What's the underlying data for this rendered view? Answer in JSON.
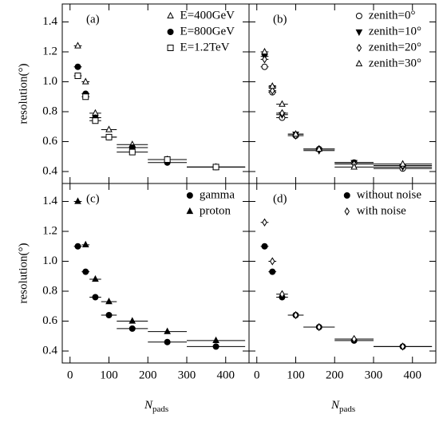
{
  "chart_data": [
    {
      "type": "scatter",
      "panel_label": "(a)",
      "legend": "upper right",
      "ylabel": "resolution(°)",
      "x": [
        20,
        40,
        65,
        100,
        160,
        250,
        375
      ],
      "xerr": [
        10,
        10,
        15,
        20,
        40,
        50,
        75
      ],
      "xlim": [
        -20,
        460
      ],
      "ylim": [
        0.32,
        1.52
      ],
      "xticks": [
        0,
        100,
        200,
        300,
        400
      ],
      "yticks": [
        0.4,
        0.6,
        0.8,
        {
          "value": 1,
          "label": "1.0"
        },
        1.2,
        1.4
      ],
      "series": [
        {
          "name": "E=400GeV",
          "marker": "triangle",
          "filled": false,
          "color": "#000000",
          "values": [
            1.24,
            1.0,
            0.79,
            0.68,
            0.58,
            0.48,
            0.43
          ]
        },
        {
          "name": "E=800GeV",
          "marker": "circle",
          "filled": true,
          "color": "#000000",
          "values": [
            1.1,
            0.92,
            0.76,
            0.63,
            0.56,
            0.46,
            0.43
          ]
        },
        {
          "name": "E=1.2TeV",
          "marker": "square",
          "filled": false,
          "color": "#000000",
          "values": [
            1.04,
            0.9,
            0.74,
            0.63,
            0.53,
            0.48,
            0.43
          ]
        }
      ]
    },
    {
      "type": "scatter",
      "panel_label": "(b)",
      "legend": "upper right",
      "x": [
        20,
        40,
        65,
        100,
        160,
        250,
        375
      ],
      "xerr": [
        10,
        10,
        15,
        20,
        40,
        50,
        75
      ],
      "xlim": [
        -20,
        460
      ],
      "ylim": [
        0.32,
        1.52
      ],
      "xticks": [
        0,
        100,
        200,
        300,
        400
      ],
      "yticks": [
        0.4,
        0.6,
        0.8,
        {
          "value": 1,
          "label": "1.0"
        },
        1.2,
        1.4
      ],
      "series": [
        {
          "name": "zenith=0°",
          "marker": "circle",
          "filled": false,
          "color": "#000000",
          "values": [
            1.1,
            0.93,
            0.76,
            0.64,
            0.55,
            0.46,
            0.42
          ]
        },
        {
          "name": "zenith=10°",
          "marker": "triangle-down",
          "filled": true,
          "color": "#000000",
          "values": [
            1.17,
            0.96,
            0.78,
            0.65,
            0.54,
            0.46,
            0.43
          ]
        },
        {
          "name": "zenith=20°",
          "marker": "diamond",
          "filled": false,
          "color": "#000000",
          "values": [
            1.15,
            0.94,
            0.79,
            0.64,
            0.55,
            0.45,
            0.44
          ]
        },
        {
          "name": "zenith=30°",
          "marker": "triangle",
          "filled": false,
          "color": "#000000",
          "values": [
            1.2,
            0.97,
            0.85,
            0.65,
            0.55,
            0.43,
            0.45
          ]
        }
      ]
    },
    {
      "type": "scatter",
      "panel_label": "(c)",
      "legend": "upper right",
      "ylabel": "resolution(°)",
      "xlabel": "N",
      "xlabel_subscript": "pads",
      "x": [
        20,
        40,
        65,
        100,
        160,
        250,
        375
      ],
      "xerr": [
        10,
        10,
        15,
        20,
        40,
        50,
        75
      ],
      "xlim": [
        -20,
        460
      ],
      "ylim": [
        0.32,
        1.52
      ],
      "xticks": [
        0,
        100,
        200,
        300,
        400
      ],
      "yticks": [
        0.4,
        0.6,
        0.8,
        {
          "value": 1,
          "label": "1.0"
        },
        1.2,
        1.4
      ],
      "series": [
        {
          "name": "gamma",
          "marker": "circle",
          "filled": true,
          "color": "#000000",
          "values": [
            1.1,
            0.93,
            0.76,
            0.64,
            0.55,
            0.46,
            0.43
          ]
        },
        {
          "name": "proton",
          "marker": "triangle",
          "filled": true,
          "color": "#000000",
          "values": [
            1.4,
            1.11,
            0.88,
            0.73,
            0.6,
            0.53,
            0.47
          ]
        }
      ]
    },
    {
      "type": "scatter",
      "panel_label": "(d)",
      "legend": "upper right",
      "xlabel": "N",
      "xlabel_subscript": "pads",
      "x": [
        20,
        40,
        65,
        100,
        160,
        250,
        375
      ],
      "xerr": [
        10,
        10,
        15,
        20,
        40,
        50,
        75
      ],
      "xlim": [
        -20,
        460
      ],
      "ylim": [
        0.32,
        1.52
      ],
      "xticks": [
        0,
        100,
        200,
        300,
        400
      ],
      "yticks": [
        0.4,
        0.6,
        0.8,
        {
          "value": 1,
          "label": "1.0"
        },
        1.2,
        1.4
      ],
      "series": [
        {
          "name": "without noise",
          "marker": "circle",
          "filled": true,
          "color": "#000000",
          "values": [
            1.1,
            0.93,
            0.76,
            0.64,
            0.56,
            0.47,
            0.43
          ]
        },
        {
          "name": "with noise",
          "marker": "diamond",
          "filled": false,
          "color": "#000000",
          "values": [
            1.26,
            1.0,
            0.78,
            0.64,
            0.56,
            0.48,
            0.43
          ]
        }
      ]
    }
  ]
}
